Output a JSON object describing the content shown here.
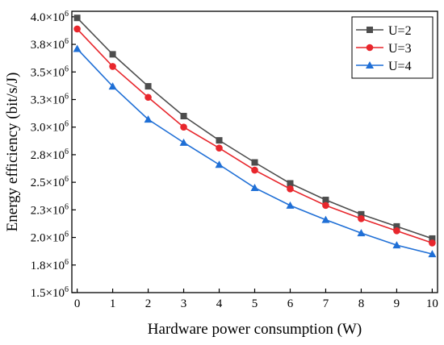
{
  "chart_data": {
    "type": "line",
    "title": "",
    "xlabel": "Hardware power consumption (W)",
    "ylabel": "Energy efficiency (bit/s/J)",
    "xlim": [
      -0.15,
      10.15
    ],
    "ylim": [
      1.5,
      4.05
    ],
    "x": [
      0,
      1,
      2,
      3,
      4,
      5,
      6,
      7,
      8,
      9,
      10
    ],
    "x_ticks": [
      "0",
      "1",
      "2",
      "3",
      "4",
      "5",
      "6",
      "7",
      "8",
      "9",
      "10"
    ],
    "y_ticks": [
      1.5,
      1.75,
      2.0,
      2.25,
      2.5,
      2.75,
      3.0,
      3.25,
      3.5,
      3.75,
      4.0
    ],
    "y_tick_labels": [
      "1.5",
      "1.8",
      "2.0",
      "2.3",
      "2.5",
      "2.8",
      "3.0",
      "3.3",
      "3.5",
      "3.8",
      "4.0"
    ],
    "y_tick_multiplier": "×10",
    "y_tick_exponent": "6",
    "grid": false,
    "legend_position": "top-right",
    "series": [
      {
        "name": "U=2",
        "color": "#4d4d4d",
        "marker": "square",
        "values": [
          3.99,
          3.66,
          3.37,
          3.1,
          2.88,
          2.68,
          2.49,
          2.34,
          2.21,
          2.1,
          1.99
        ]
      },
      {
        "name": "U=3",
        "color": "#e8262c",
        "marker": "circle",
        "values": [
          3.89,
          3.55,
          3.27,
          3.0,
          2.81,
          2.61,
          2.44,
          2.29,
          2.17,
          2.06,
          1.95
        ]
      },
      {
        "name": "U=4",
        "color": "#1f6fd6",
        "marker": "triangle",
        "values": [
          3.71,
          3.37,
          3.07,
          2.86,
          2.66,
          2.45,
          2.29,
          2.16,
          2.04,
          1.93,
          1.85
        ]
      }
    ]
  }
}
